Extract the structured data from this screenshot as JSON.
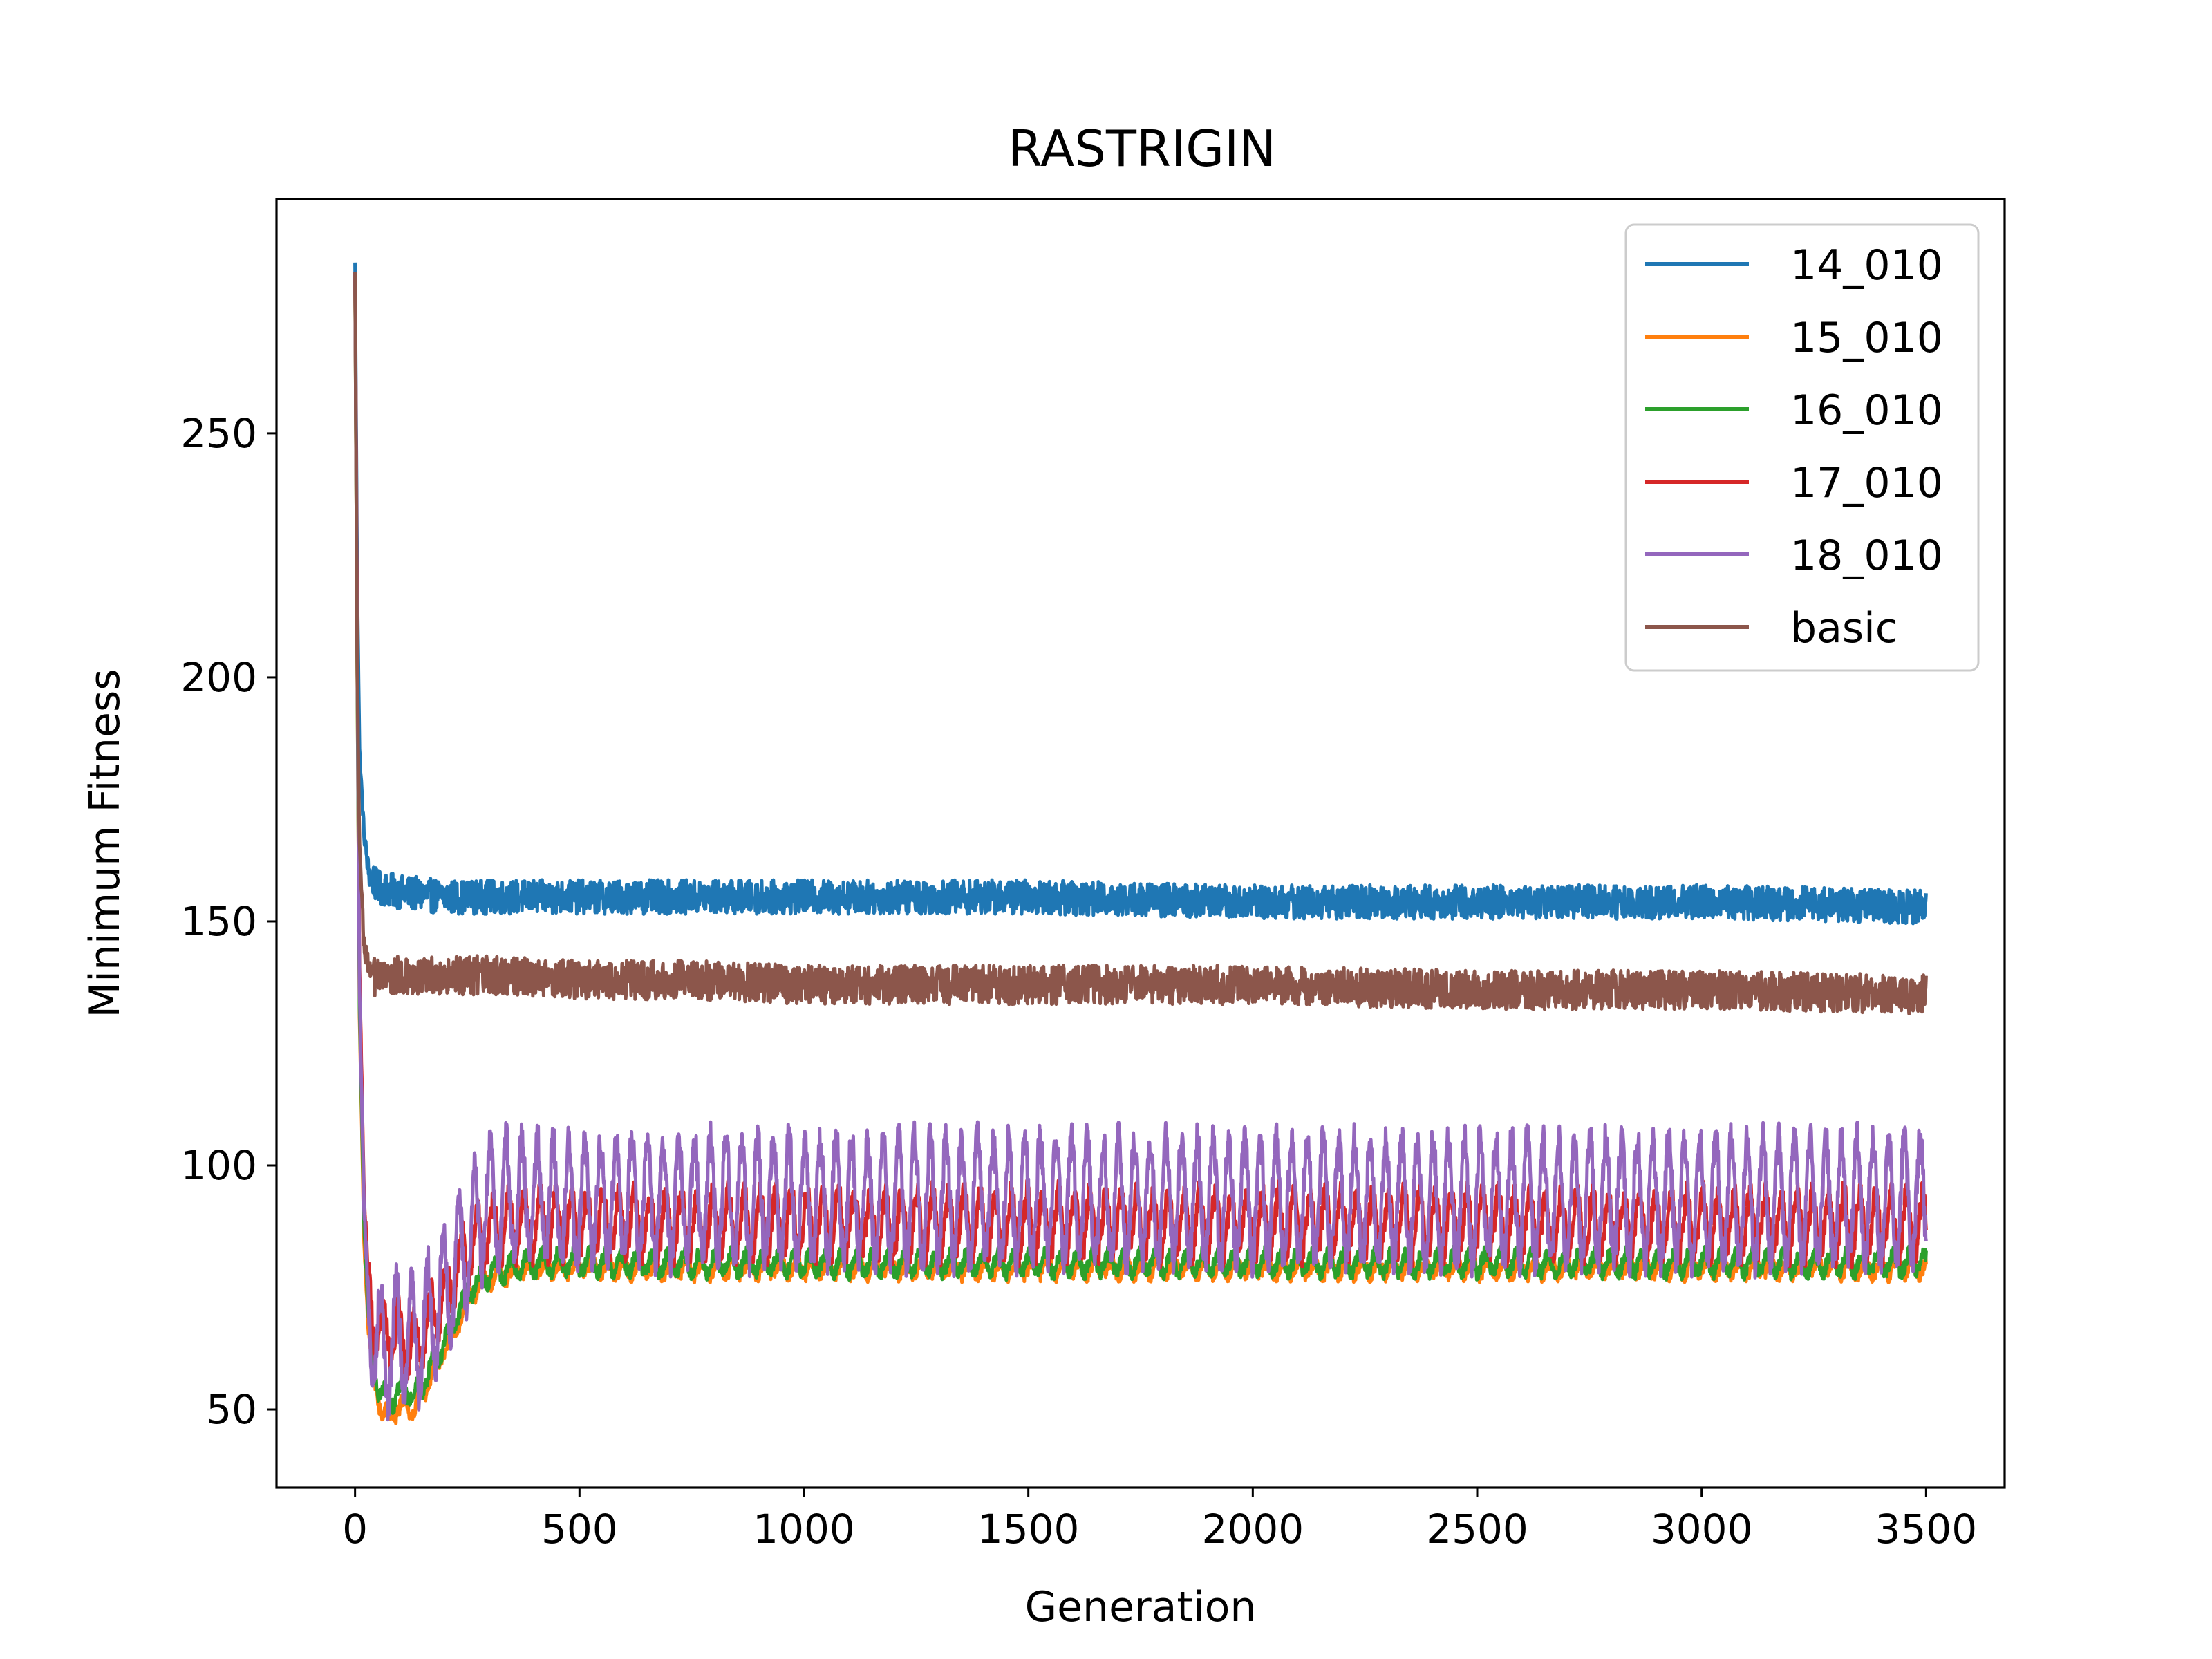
{
  "chart_data": {
    "type": "line",
    "title": "RASTRIGIN",
    "xlabel": "Generation",
    "ylabel": "Minimum Fitness",
    "xlim": [
      -175,
      3675
    ],
    "ylim": [
      34,
      298
    ],
    "xticks": [
      0,
      500,
      1000,
      1500,
      2000,
      2500,
      3000,
      3500
    ],
    "yticks": [
      50,
      100,
      150,
      200,
      250
    ],
    "grid": false,
    "legend_position": "top-right",
    "series": [
      {
        "name": "14_010",
        "color": "#1f77b4",
        "x": [
          0,
          5,
          10,
          20,
          30,
          50,
          100,
          200,
          300,
          500,
          750,
          1000,
          1500,
          2000,
          2500,
          3000,
          3500
        ],
        "y": [
          285,
          220,
          185,
          168,
          160,
          157,
          156,
          155,
          155,
          155,
          155,
          155,
          155,
          154,
          154,
          154,
          153
        ],
        "noise": 3.5
      },
      {
        "name": "15_010",
        "color": "#ff7f0e",
        "x": [
          0,
          5,
          10,
          20,
          30,
          45,
          60,
          75,
          90,
          110,
          130,
          150,
          175,
          200,
          230,
          260,
          300,
          350,
          400,
          500,
          1000,
          1500,
          2000,
          2500,
          3000,
          3500
        ],
        "y": [
          282,
          200,
          130,
          85,
          65,
          55,
          50,
          48,
          50,
          51,
          50,
          53,
          58,
          62,
          68,
          74,
          77,
          78,
          79,
          79,
          79,
          79,
          79,
          79,
          79,
          79
        ],
        "noise": 1.5,
        "period": 35,
        "amp": 1.5
      },
      {
        "name": "16_010",
        "color": "#2ca02c",
        "x": [
          0,
          5,
          10,
          20,
          30,
          45,
          60,
          75,
          90,
          110,
          130,
          150,
          175,
          200,
          230,
          260,
          300,
          350,
          400,
          500,
          1000,
          1500,
          2000,
          2500,
          3000,
          3500
        ],
        "y": [
          282,
          200,
          132,
          88,
          68,
          57,
          53,
          52,
          53,
          54,
          53,
          55,
          60,
          64,
          70,
          75,
          78,
          79,
          80,
          80,
          80,
          80,
          80,
          80,
          80,
          80
        ],
        "noise": 1.5,
        "period": 35,
        "amp": 2
      },
      {
        "name": "17_010",
        "color": "#d62728",
        "x": [
          0,
          5,
          10,
          20,
          30,
          45,
          60,
          75,
          90,
          110,
          130,
          150,
          175,
          200,
          230,
          260,
          300,
          350,
          400,
          500,
          1000,
          1500,
          2000,
          2500,
          3000,
          3500
        ],
        "y": [
          283,
          210,
          140,
          95,
          75,
          68,
          66,
          66,
          65,
          64,
          63,
          66,
          70,
          74,
          80,
          84,
          86,
          88,
          88,
          88,
          88,
          88,
          88,
          88,
          88,
          88
        ],
        "noise": 3,
        "period": 35,
        "amp": 6
      },
      {
        "name": "18_010",
        "color": "#9467bd",
        "x": [
          0,
          5,
          10,
          20,
          30,
          45,
          60,
          75,
          90,
          110,
          130,
          150,
          175,
          200,
          230,
          260,
          290,
          330,
          400,
          500,
          1000,
          1500,
          2000,
          2500,
          3000,
          3500
        ],
        "y": [
          283,
          205,
          135,
          92,
          72,
          64,
          62,
          63,
          64,
          65,
          64,
          66,
          70,
          74,
          80,
          86,
          92,
          93,
          93,
          93,
          93,
          93,
          93,
          93,
          93,
          93
        ],
        "noise": 4,
        "period": 35,
        "amp": 12
      },
      {
        "name": "basic",
        "color": "#8c564b",
        "x": [
          0,
          5,
          10,
          20,
          30,
          50,
          100,
          200,
          300,
          500,
          750,
          1000,
          1500,
          2000,
          2500,
          3000,
          3500
        ],
        "y": [
          283,
          200,
          165,
          145,
          140,
          138,
          139,
          139,
          139,
          138,
          138,
          137,
          137,
          137,
          136,
          136,
          135
        ],
        "noise": 4
      }
    ]
  }
}
